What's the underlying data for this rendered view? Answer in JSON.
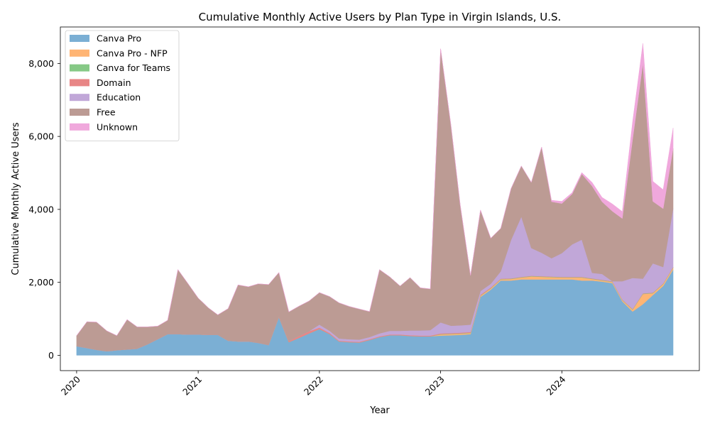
{
  "chart_data": {
    "type": "area",
    "stacked": true,
    "title": "Cumulative Monthly Active Users by Plan Type in Virgin Islands, U.S.",
    "xlabel": "Year",
    "ylabel": "Cumulative Monthly Active Users",
    "xlim": [
      "2019-11-13",
      "2025-02-18"
    ],
    "ylim": [
      -420,
      9000
    ],
    "yticks": [
      0,
      2000,
      4000,
      6000,
      8000
    ],
    "ytick_labels": [
      "0",
      "2,000",
      "4,000",
      "6,000",
      "8,000"
    ],
    "xticks": [
      "2020-01-01",
      "2021-01-01",
      "2022-01-01",
      "2023-01-01",
      "2024-01-01"
    ],
    "xtick_labels": [
      "2020",
      "2021",
      "2022",
      "2023",
      "2024"
    ],
    "grid": false,
    "legend_position": "upper-left",
    "x": [
      "2020-01",
      "2020-02",
      "2020-03",
      "2020-04",
      "2020-05",
      "2020-06",
      "2020-07",
      "2020-08",
      "2020-09",
      "2020-10",
      "2020-11",
      "2020-12",
      "2021-01",
      "2021-02",
      "2021-03",
      "2021-04",
      "2021-05",
      "2021-06",
      "2021-07",
      "2021-08",
      "2021-09",
      "2021-10",
      "2021-11",
      "2021-12",
      "2022-01",
      "2022-02",
      "2022-03",
      "2022-04",
      "2022-05",
      "2022-06",
      "2022-07",
      "2022-08",
      "2022-09",
      "2022-10",
      "2022-11",
      "2022-12",
      "2023-01",
      "2023-02",
      "2023-03",
      "2023-04",
      "2023-05",
      "2023-06",
      "2023-07",
      "2023-08",
      "2023-09",
      "2023-10",
      "2023-11",
      "2023-12",
      "2024-01",
      "2024-02",
      "2024-03",
      "2024-04",
      "2024-05",
      "2024-06",
      "2024-07",
      "2024-08",
      "2024-09",
      "2024-10",
      "2024-11",
      "2024-12"
    ],
    "series": [
      {
        "name": "Canva Pro",
        "color": "#7bafd4",
        "values": [
          250,
          200,
          150,
          110,
          140,
          160,
          180,
          300,
          440,
          580,
          580,
          570,
          570,
          560,
          560,
          400,
          380,
          380,
          340,
          280,
          1050,
          360,
          480,
          600,
          720,
          580,
          380,
          360,
          350,
          420,
          500,
          550,
          550,
          530,
          520,
          520,
          540,
          550,
          560,
          580,
          1600,
          1800,
          2050,
          2050,
          2080,
          2080,
          2080,
          2080,
          2080,
          2080,
          2050,
          2050,
          2020,
          1980,
          1480,
          1200,
          1400,
          1650,
          1900,
          2350
        ]
      },
      {
        "name": "Canva Pro - NFP",
        "color": "#ffb574",
        "values": [
          0,
          0,
          0,
          0,
          0,
          0,
          0,
          0,
          0,
          0,
          0,
          0,
          0,
          0,
          0,
          0,
          0,
          0,
          0,
          0,
          0,
          0,
          0,
          0,
          0,
          0,
          0,
          0,
          0,
          0,
          0,
          0,
          0,
          0,
          0,
          0,
          30,
          30,
          30,
          30,
          30,
          30,
          30,
          40,
          50,
          80,
          70,
          60,
          50,
          50,
          80,
          40,
          30,
          30,
          30,
          50,
          280,
          50,
          50,
          50
        ]
      },
      {
        "name": "Canva for Teams",
        "color": "#86c986",
        "values": [
          0,
          0,
          0,
          0,
          0,
          0,
          0,
          0,
          0,
          0,
          0,
          0,
          0,
          0,
          0,
          0,
          0,
          0,
          0,
          0,
          0,
          0,
          0,
          0,
          0,
          0,
          0,
          0,
          0,
          0,
          0,
          0,
          0,
          0,
          0,
          0,
          10,
          10,
          10,
          10,
          10,
          10,
          10,
          10,
          10,
          10,
          10,
          10,
          10,
          10,
          10,
          10,
          10,
          10,
          10,
          10,
          10,
          10,
          10,
          10
        ]
      },
      {
        "name": "Domain",
        "color": "#e88686",
        "values": [
          0,
          0,
          0,
          0,
          0,
          0,
          0,
          0,
          0,
          0,
          0,
          0,
          0,
          0,
          0,
          0,
          0,
          0,
          0,
          0,
          20,
          30,
          50,
          60,
          40,
          30,
          20,
          20,
          20,
          20,
          20,
          20,
          20,
          20,
          20,
          20,
          20,
          20,
          20,
          20,
          20,
          20,
          10,
          10,
          10,
          10,
          10,
          10,
          10,
          10,
          10,
          10,
          10,
          10,
          10,
          10,
          10,
          10,
          10,
          10
        ]
      },
      {
        "name": "Education",
        "color": "#c1a7d8",
        "values": [
          0,
          0,
          0,
          0,
          0,
          0,
          0,
          0,
          0,
          0,
          0,
          0,
          0,
          0,
          0,
          0,
          0,
          0,
          0,
          0,
          0,
          0,
          0,
          0,
          80,
          60,
          60,
          60,
          60,
          60,
          80,
          100,
          100,
          130,
          140,
          150,
          300,
          200,
          200,
          200,
          100,
          100,
          200,
          1050,
          1650,
          760,
          640,
          500,
          650,
          890,
          1020,
          150,
          160,
          0,
          500,
          850,
          400,
          800,
          450,
          1600
        ]
      },
      {
        "name": "Free",
        "color": "#bc9b94",
        "values": [
          290,
          720,
          760,
          560,
          400,
          820,
          600,
          480,
          360,
          380,
          1770,
          1400,
          1000,
          740,
          550,
          880,
          1550,
          1500,
          1620,
          1660,
          1200,
          800,
          820,
          830,
          880,
          940,
          980,
          900,
          840,
          700,
          1750,
          1480,
          1230,
          1450,
          1170,
          1130,
          7500,
          5500,
          3300,
          1350,
          2220,
          1250,
          1180,
          1410,
          1390,
          1800,
          2900,
          1550,
          1360,
          1380,
          1800,
          2380,
          1980,
          1920,
          1720,
          3800,
          5900,
          1700,
          1600,
          1650
        ]
      },
      {
        "name": "Unknown",
        "color": "#f0a8dc",
        "values": [
          0,
          0,
          0,
          0,
          0,
          0,
          0,
          0,
          0,
          0,
          0,
          0,
          0,
          0,
          0,
          0,
          0,
          0,
          0,
          0,
          0,
          0,
          0,
          0,
          0,
          0,
          0,
          0,
          0,
          0,
          0,
          0,
          0,
          0,
          0,
          0,
          0,
          0,
          0,
          0,
          0,
          0,
          0,
          0,
          0,
          0,
          0,
          40,
          60,
          40,
          40,
          100,
          120,
          200,
          190,
          480,
          550,
          550,
          520,
          560
        ]
      }
    ]
  }
}
